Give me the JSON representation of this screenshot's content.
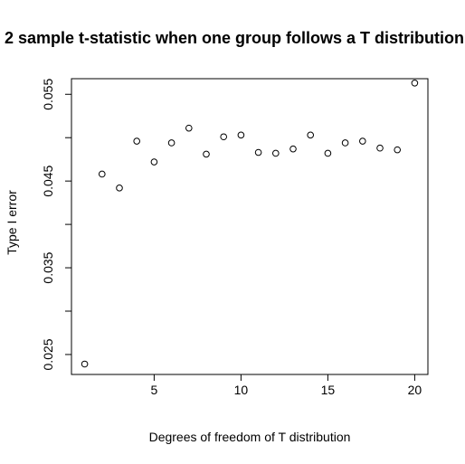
{
  "chart_data": {
    "type": "scatter",
    "title": "2 sample t-statistic when one group follows a T distribution",
    "xlabel": "Degrees of freedom of T distribution",
    "ylabel": "Type I error",
    "xlim": [
      0.24,
      20.76
    ],
    "ylim": [
      0.0227,
      0.0568
    ],
    "x_ticks": [
      5,
      10,
      15,
      20
    ],
    "x_tick_labels": [
      "5",
      "10",
      "15",
      "20"
    ],
    "y_ticks": [
      0.025,
      0.03,
      0.035,
      0.04,
      0.045,
      0.05,
      0.055
    ],
    "y_tick_labels": [
      "0.025",
      "",
      "0.035",
      "",
      "0.045",
      "",
      "0.055"
    ],
    "grid": false,
    "marker": "open-circle",
    "x": [
      1,
      2,
      3,
      4,
      5,
      6,
      7,
      8,
      9,
      10,
      11,
      12,
      13,
      14,
      15,
      16,
      17,
      18,
      19,
      20
    ],
    "y": [
      0.0239,
      0.0458,
      0.0442,
      0.0496,
      0.0472,
      0.0494,
      0.0511,
      0.0481,
      0.0501,
      0.0503,
      0.0483,
      0.0482,
      0.0487,
      0.0503,
      0.0482,
      0.0494,
      0.0496,
      0.0488,
      0.0486,
      0.0563
    ]
  }
}
